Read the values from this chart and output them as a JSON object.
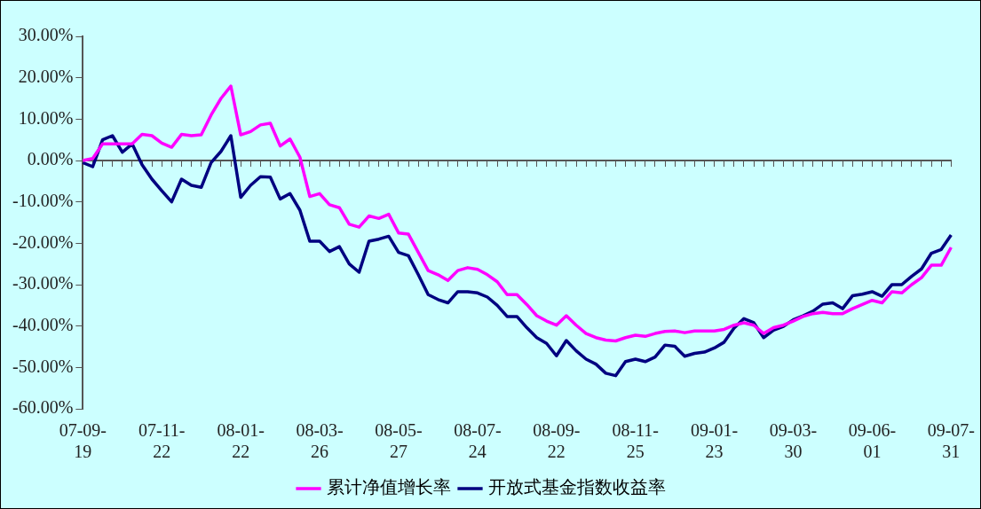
{
  "chart_data": {
    "type": "line",
    "categories": [
      "07-09-19",
      null,
      null,
      null,
      null,
      null,
      null,
      null,
      "07-11-22",
      null,
      null,
      null,
      null,
      null,
      null,
      null,
      "08-01-22",
      null,
      null,
      null,
      null,
      null,
      null,
      null,
      "08-03-26",
      null,
      null,
      null,
      null,
      null,
      null,
      null,
      "08-05-27",
      null,
      null,
      null,
      null,
      null,
      null,
      null,
      "08-07-24",
      null,
      null,
      null,
      null,
      null,
      null,
      null,
      "08-09-22",
      null,
      null,
      null,
      null,
      null,
      null,
      null,
      "08-11-25",
      null,
      null,
      null,
      null,
      null,
      null,
      null,
      "09-01-23",
      null,
      null,
      null,
      null,
      null,
      null,
      null,
      "09-03-30",
      null,
      null,
      null,
      null,
      null,
      null,
      null,
      "09-06-01",
      null,
      null,
      null,
      null,
      null,
      null,
      null,
      "09-07-31"
    ],
    "series": [
      {
        "name": "累计净值增长率",
        "color": "#ff00ff",
        "values": [
          0,
          0.5,
          4,
          4,
          4,
          4,
          6.3,
          6,
          4.2,
          3.2,
          6.3,
          6,
          6.2,
          11,
          15,
          18,
          6.2,
          7,
          8.6,
          9,
          3.5,
          5.2,
          0.8,
          -8.7,
          -8,
          -10.7,
          -11.4,
          -15.4,
          -16.1,
          -13.4,
          -14,
          -13,
          -17.5,
          -17.8,
          -22.2,
          -26.6,
          -27.6,
          -29,
          -26.6,
          -25.9,
          -26.3,
          -27.6,
          -29.3,
          -32.4,
          -32.4,
          -34.8,
          -37.5,
          -38.8,
          -39.8,
          -37.5,
          -39.8,
          -41.8,
          -42.8,
          -43.4,
          -43.6,
          -42.8,
          -42.2,
          -42.5,
          -41.8,
          -41.3,
          -41.2,
          -41.6,
          -41.2,
          -41.2,
          -41.2,
          -40.8,
          -39.8,
          -39.2,
          -39.8,
          -41.8,
          -40.4,
          -39.8,
          -38.8,
          -37.7,
          -37,
          -36.7,
          -37,
          -37,
          -35.8,
          -34.8,
          -33.8,
          -34.4,
          -31.7,
          -32,
          -30,
          -28.3,
          -25.3,
          -25.3,
          -21
        ]
      },
      {
        "name": "开放式基金指数收益率",
        "color": "#000080",
        "values": [
          -0.5,
          -1.5,
          5,
          6,
          2,
          4,
          -1,
          -4.5,
          -7.3,
          -10,
          -4.5,
          -6,
          -6.5,
          -0.5,
          2.2,
          6,
          -8.9,
          -6,
          -3.9,
          -4,
          -9.3,
          -8,
          -12,
          -19.5,
          -19.5,
          -22,
          -20.8,
          -25,
          -27,
          -19.5,
          -19,
          -18.3,
          -22.2,
          -23,
          -27.6,
          -32.4,
          -33.6,
          -34.4,
          -31.7,
          -31.7,
          -32,
          -33,
          -35,
          -37.7,
          -37.7,
          -40.4,
          -42.8,
          -44.2,
          -47.2,
          -43.5,
          -46,
          -48,
          -49.2,
          -51.4,
          -52,
          -48.6,
          -48,
          -48.6,
          -47.5,
          -44.6,
          -44.9,
          -47.3,
          -46.6,
          -46.3,
          -45.3,
          -43.9,
          -40.5,
          -38.2,
          -39.2,
          -42.8,
          -41,
          -40.1,
          -38.5,
          -37.5,
          -36.4,
          -34.7,
          -34.4,
          -35.8,
          -32.7,
          -32.3,
          -31.7,
          -32.8,
          -30,
          -30,
          -28,
          -26.2,
          -22.4,
          -21.5,
          -18
        ]
      }
    ],
    "ylim": [
      -60,
      30
    ],
    "yticks": [
      {
        "value": 30,
        "label": "30.00%"
      },
      {
        "value": 20,
        "label": "20.00%"
      },
      {
        "value": 10,
        "label": "10.00%"
      },
      {
        "value": 0,
        "label": "0.00%"
      },
      {
        "value": -10,
        "label": "-10.00%"
      },
      {
        "value": -20,
        "label": "-20.00%"
      },
      {
        "value": -30,
        "label": "-30.00%"
      },
      {
        "value": -40,
        "label": "-40.00%"
      },
      {
        "value": -50,
        "label": "-50.00%"
      },
      {
        "value": -60,
        "label": "-60.00%"
      }
    ],
    "legend": "bottom",
    "marker": "none",
    "line_style": "solid"
  }
}
